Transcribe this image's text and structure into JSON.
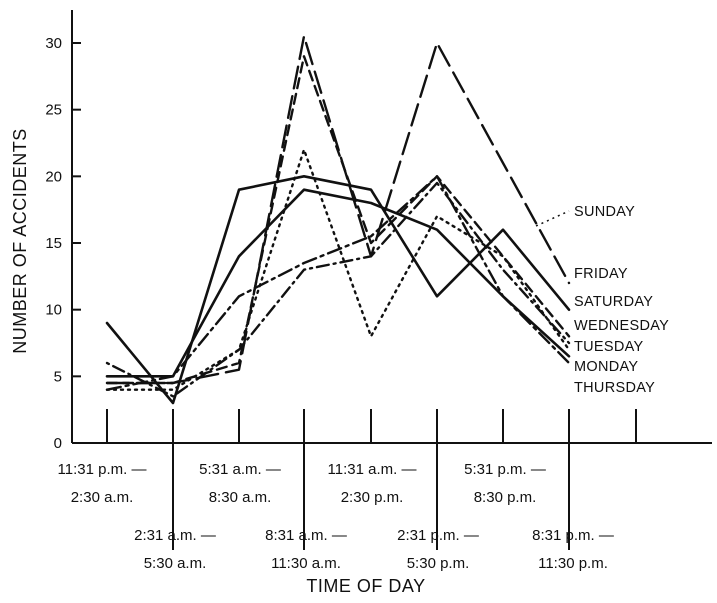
{
  "chart_data": {
    "type": "line",
    "xlabel": "TIME OF DAY",
    "ylabel": "NUMBER OF ACCIDENTS",
    "ylim": [
      0,
      32
    ],
    "yticks": [
      0,
      5,
      10,
      15,
      20,
      25,
      30
    ],
    "grid": false,
    "categories": [
      [
        "11:31 p.m. —",
        "2:30 a.m."
      ],
      [
        "2:31 a.m. —",
        "5:30 a.m."
      ],
      [
        "5:31 a.m. —",
        "8:30 a.m."
      ],
      [
        "8:31 a.m. —",
        "11:30 a.m."
      ],
      [
        "11:31 a.m. —",
        "2:30 p.m."
      ],
      [
        "2:31 p.m. —",
        "5:30 p.m."
      ],
      [
        "5:31 p.m. —",
        "8:30 p.m."
      ],
      [
        "8:31 p.m. —",
        "11:30 p.m."
      ]
    ],
    "series": [
      {
        "name": "SUNDAY",
        "style": "dot-dash",
        "values": [
          6,
          3.5,
          7,
          13,
          14,
          19.5,
          13,
          7.5
        ]
      },
      {
        "name": "FRIDAY",
        "style": "long-dash",
        "values": [
          4.5,
          4.5,
          5.5,
          30.5,
          14,
          30,
          21,
          12
        ]
      },
      {
        "name": "SATURDAY",
        "style": "solid",
        "values": [
          9,
          3,
          19,
          20,
          19,
          11,
          16,
          10
        ]
      },
      {
        "name": "WEDNESDAY",
        "style": "dashed",
        "values": [
          4.5,
          4.5,
          6,
          29,
          15,
          20,
          14,
          8
        ]
      },
      {
        "name": "TUESDAY",
        "style": "dotted",
        "values": [
          4,
          4,
          7,
          22,
          8,
          17,
          14,
          7
        ]
      },
      {
        "name": "MONDAY",
        "style": "solid",
        "values": [
          5,
          5,
          14,
          19,
          18,
          16,
          11,
          6.5
        ]
      },
      {
        "name": "THURSDAY",
        "style": "dash-dot",
        "values": [
          4,
          5,
          11,
          13.5,
          15.5,
          20,
          11,
          6
        ]
      }
    ]
  }
}
